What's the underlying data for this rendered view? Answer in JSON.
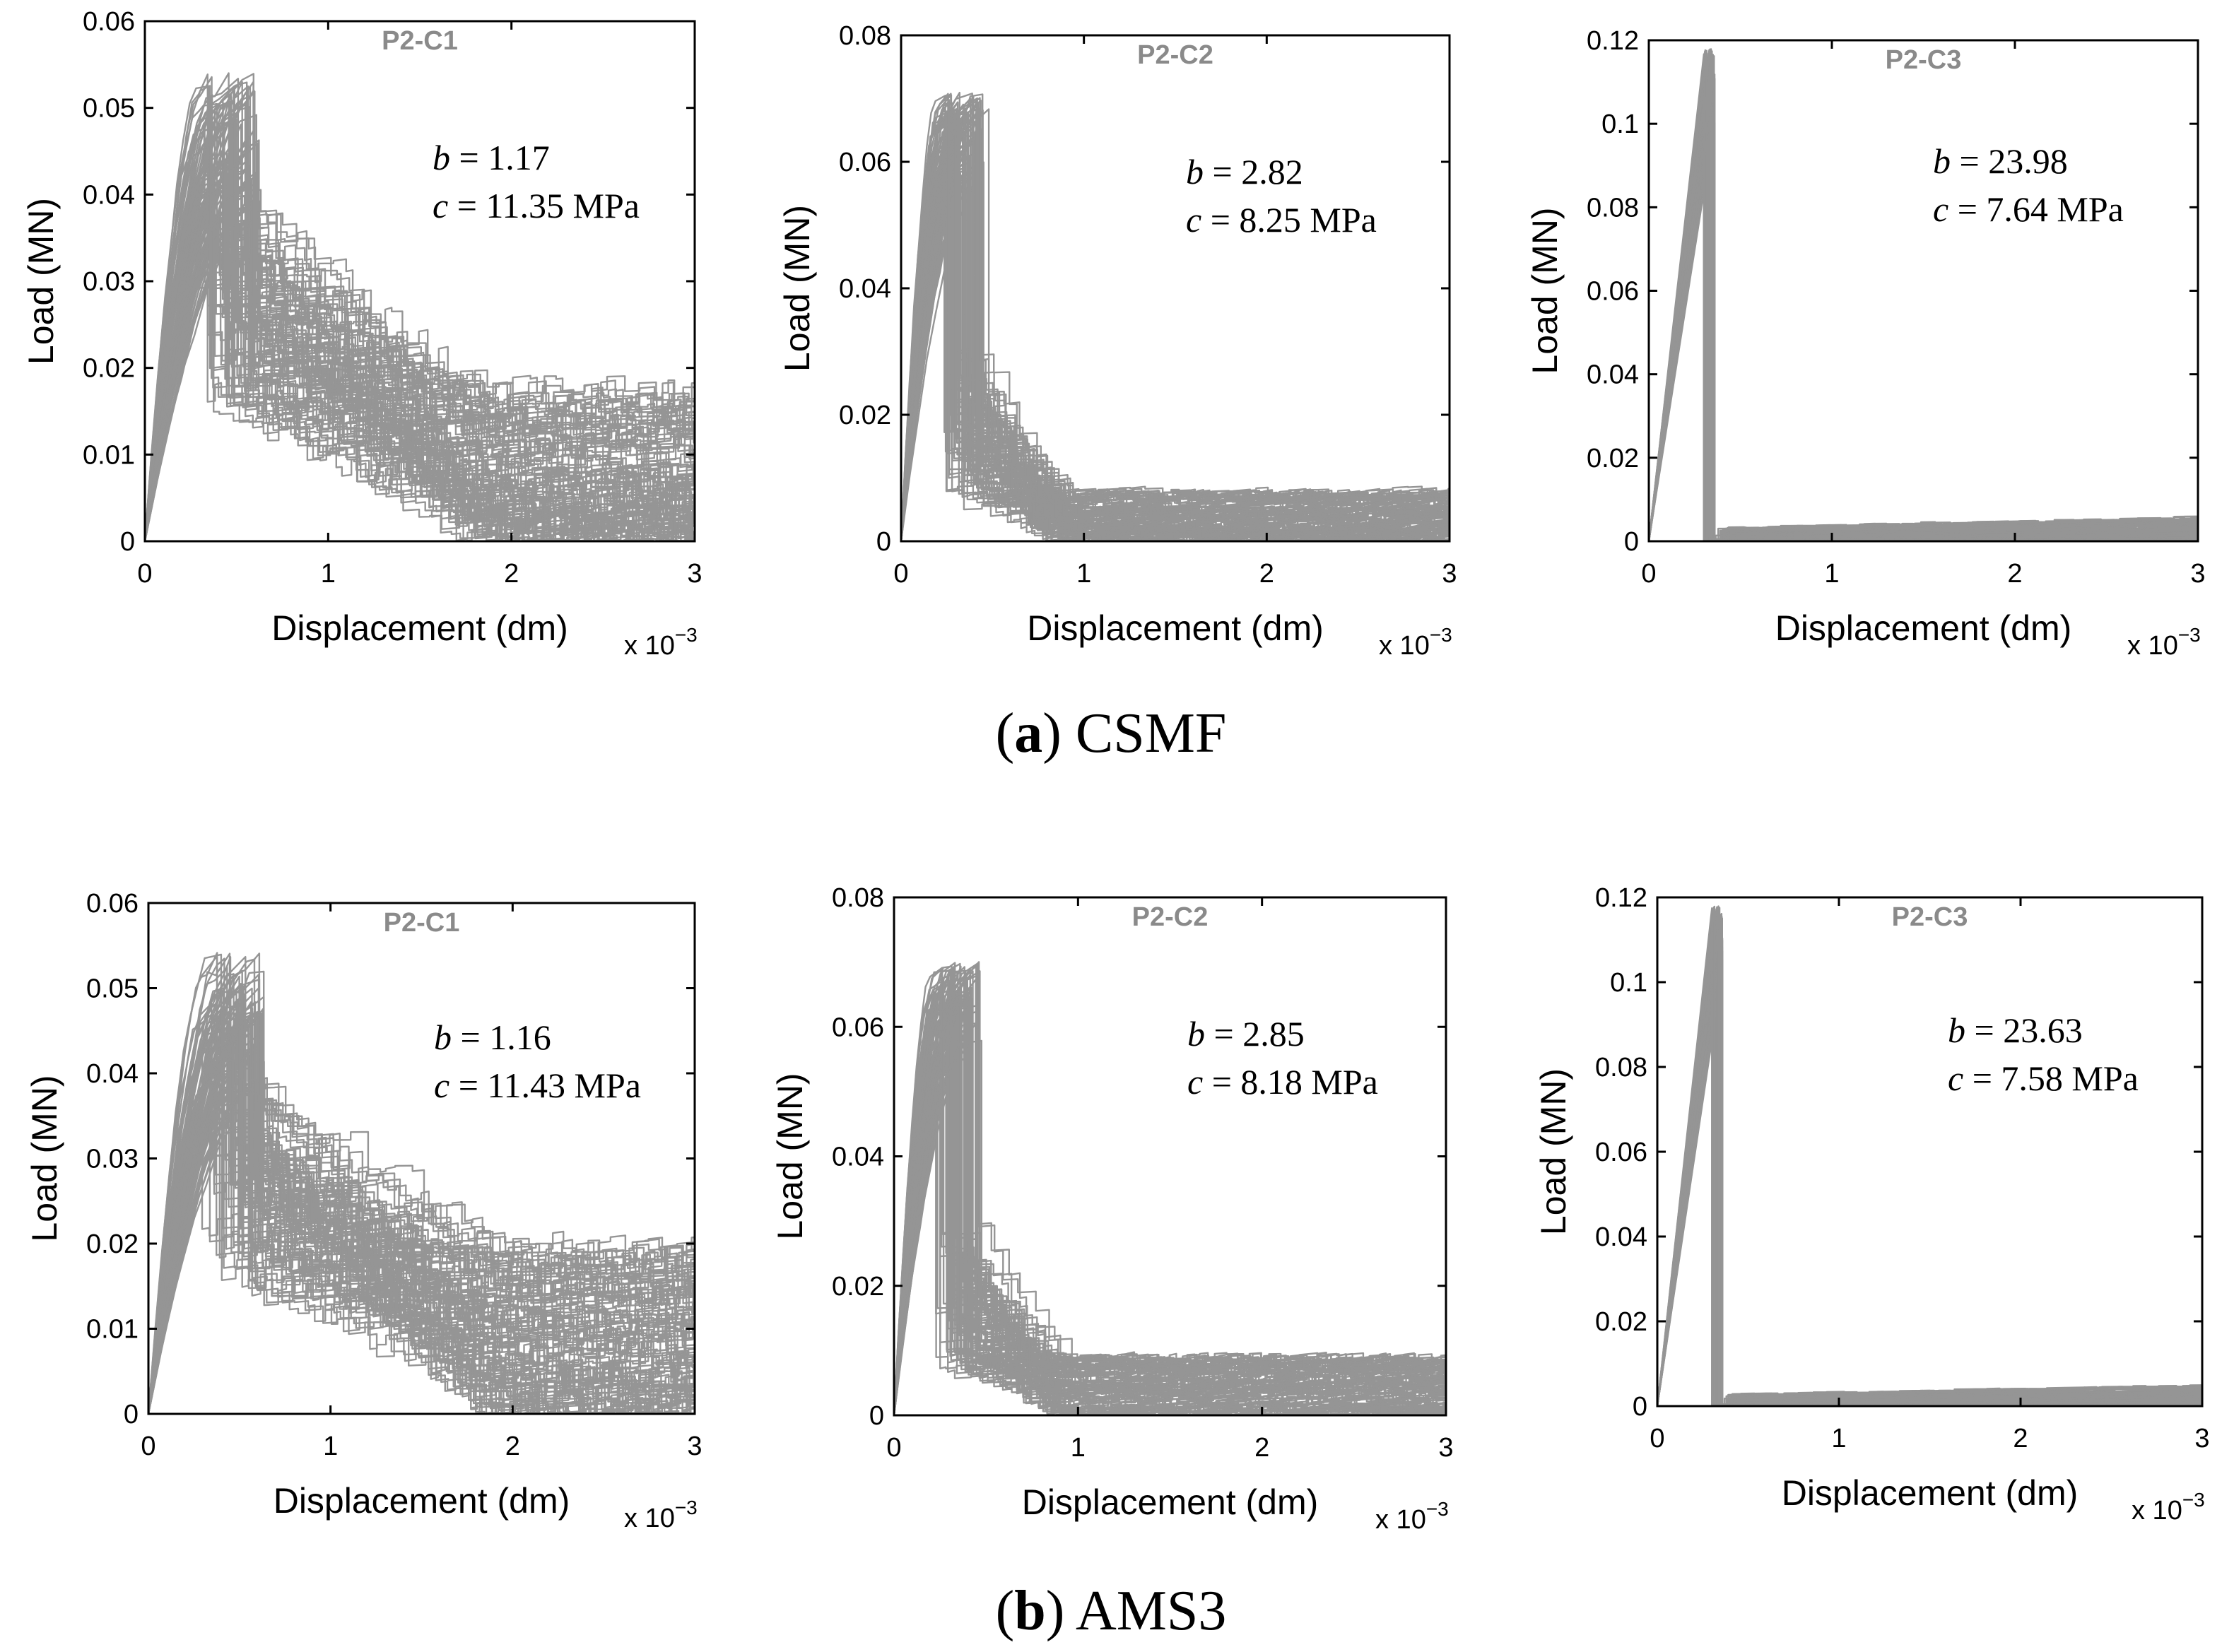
{
  "figure": {
    "captions": [
      {
        "letter": "a",
        "open": "(",
        "close": ")",
        "text": " CSMF"
      },
      {
        "letter": "b",
        "open": "(",
        "close": ")",
        "text": " AMS3"
      }
    ],
    "colors": {
      "curve": "#8a8a8a",
      "axis": "#000000",
      "title": "#8a8a8a",
      "text": "#000000"
    }
  },
  "chart_data": [
    {
      "type": "line",
      "group": "CSMF",
      "title": "P2-C1",
      "xlabel": "Displacement (dm)",
      "x_multiplier": "x 10",
      "x_exponent": "−3",
      "ylabel": "Load (MN)",
      "xlim": [
        0,
        3
      ],
      "ylim": [
        0,
        0.06
      ],
      "xticks": [
        "0",
        "1",
        "2",
        "3"
      ],
      "yticks": [
        "0",
        "0.01",
        "0.02",
        "0.03",
        "0.04",
        "0.05",
        "0.06"
      ],
      "annotations": [
        "b = 1.17",
        "c = 11.35 MPa"
      ],
      "series_count": 100,
      "peak_displacement": 0.4,
      "peak_load_range": [
        0.035,
        0.054
      ],
      "residual_load_range": [
        0.0,
        0.018
      ]
    },
    {
      "type": "line",
      "group": "CSMF",
      "title": "P2-C2",
      "xlabel": "Displacement (dm)",
      "x_multiplier": "x 10",
      "x_exponent": "−3",
      "ylabel": "Load (MN)",
      "xlim": [
        0,
        3
      ],
      "ylim": [
        0,
        0.08
      ],
      "xticks": [
        "0",
        "1",
        "2",
        "3"
      ],
      "yticks": [
        "0",
        "0.02",
        "0.04",
        "0.06",
        "0.08"
      ],
      "annotations": [
        "b = 2.82",
        "c = 8.25 MPa"
      ],
      "series_count": 100,
      "peak_displacement": 0.28,
      "peak_load_range": [
        0.055,
        0.071
      ],
      "residual_load_range": [
        0.0,
        0.008
      ]
    },
    {
      "type": "line",
      "group": "CSMF",
      "title": "P2-C3",
      "xlabel": "Displacement (dm)",
      "x_multiplier": "x 10",
      "x_exponent": "−3",
      "ylabel": "Load (MN)",
      "xlim": [
        0,
        3
      ],
      "ylim": [
        0,
        0.12
      ],
      "xticks": [
        "0",
        "1",
        "2",
        "3"
      ],
      "yticks": [
        "0",
        "0.02",
        "0.04",
        "0.06",
        "0.08",
        "0.1",
        "0.12"
      ],
      "annotations": [
        "b = 23.98",
        "c = 7.64 MPa"
      ],
      "series_count": 100,
      "peak_displacement": 0.33,
      "peak_load_range": [
        0.1,
        0.118
      ],
      "residual_load_range": [
        0.0,
        0.006
      ]
    },
    {
      "type": "line",
      "group": "AMS3",
      "title": "P2-C1",
      "xlabel": "Displacement (dm)",
      "x_multiplier": "x 10",
      "x_exponent": "−3",
      "ylabel": "Load (MN)",
      "xlim": [
        0,
        3
      ],
      "ylim": [
        0,
        0.06
      ],
      "xticks": [
        "0",
        "1",
        "2",
        "3"
      ],
      "yticks": [
        "0",
        "0.01",
        "0.02",
        "0.03",
        "0.04",
        "0.05",
        "0.06"
      ],
      "annotations": [
        "b = 1.16",
        "c = 11.43 MPa"
      ],
      "series_count": 100,
      "peak_displacement": 0.4,
      "peak_load_range": [
        0.035,
        0.054
      ],
      "residual_load_range": [
        0.0,
        0.02
      ]
    },
    {
      "type": "line",
      "group": "AMS3",
      "title": "P2-C2",
      "xlabel": "Displacement (dm)",
      "x_multiplier": "x 10",
      "x_exponent": "−3",
      "ylabel": "Load (MN)",
      "xlim": [
        0,
        3
      ],
      "ylim": [
        0,
        0.08
      ],
      "xticks": [
        "0",
        "1",
        "2",
        "3"
      ],
      "yticks": [
        "0",
        "0.02",
        "0.04",
        "0.06",
        "0.08"
      ],
      "annotations": [
        "b = 2.85",
        "c = 8.18 MPa"
      ],
      "series_count": 100,
      "peak_displacement": 0.28,
      "peak_load_range": [
        0.055,
        0.07
      ],
      "residual_load_range": [
        0.0,
        0.009
      ]
    },
    {
      "type": "line",
      "group": "AMS3",
      "title": "P2-C3",
      "xlabel": "Displacement (dm)",
      "x_multiplier": "x 10",
      "x_exponent": "−3",
      "ylabel": "Load (MN)",
      "xlim": [
        0,
        3
      ],
      "ylim": [
        0,
        0.12
      ],
      "xticks": [
        "0",
        "1",
        "2",
        "3"
      ],
      "yticks": [
        "0",
        "0.02",
        "0.04",
        "0.06",
        "0.08",
        "0.1",
        "0.12"
      ],
      "annotations": [
        "b = 23.63",
        "c = 7.58 MPa"
      ],
      "series_count": 100,
      "peak_displacement": 0.33,
      "peak_load_range": [
        0.1,
        0.118
      ],
      "residual_load_range": [
        0.0,
        0.005
      ]
    }
  ]
}
